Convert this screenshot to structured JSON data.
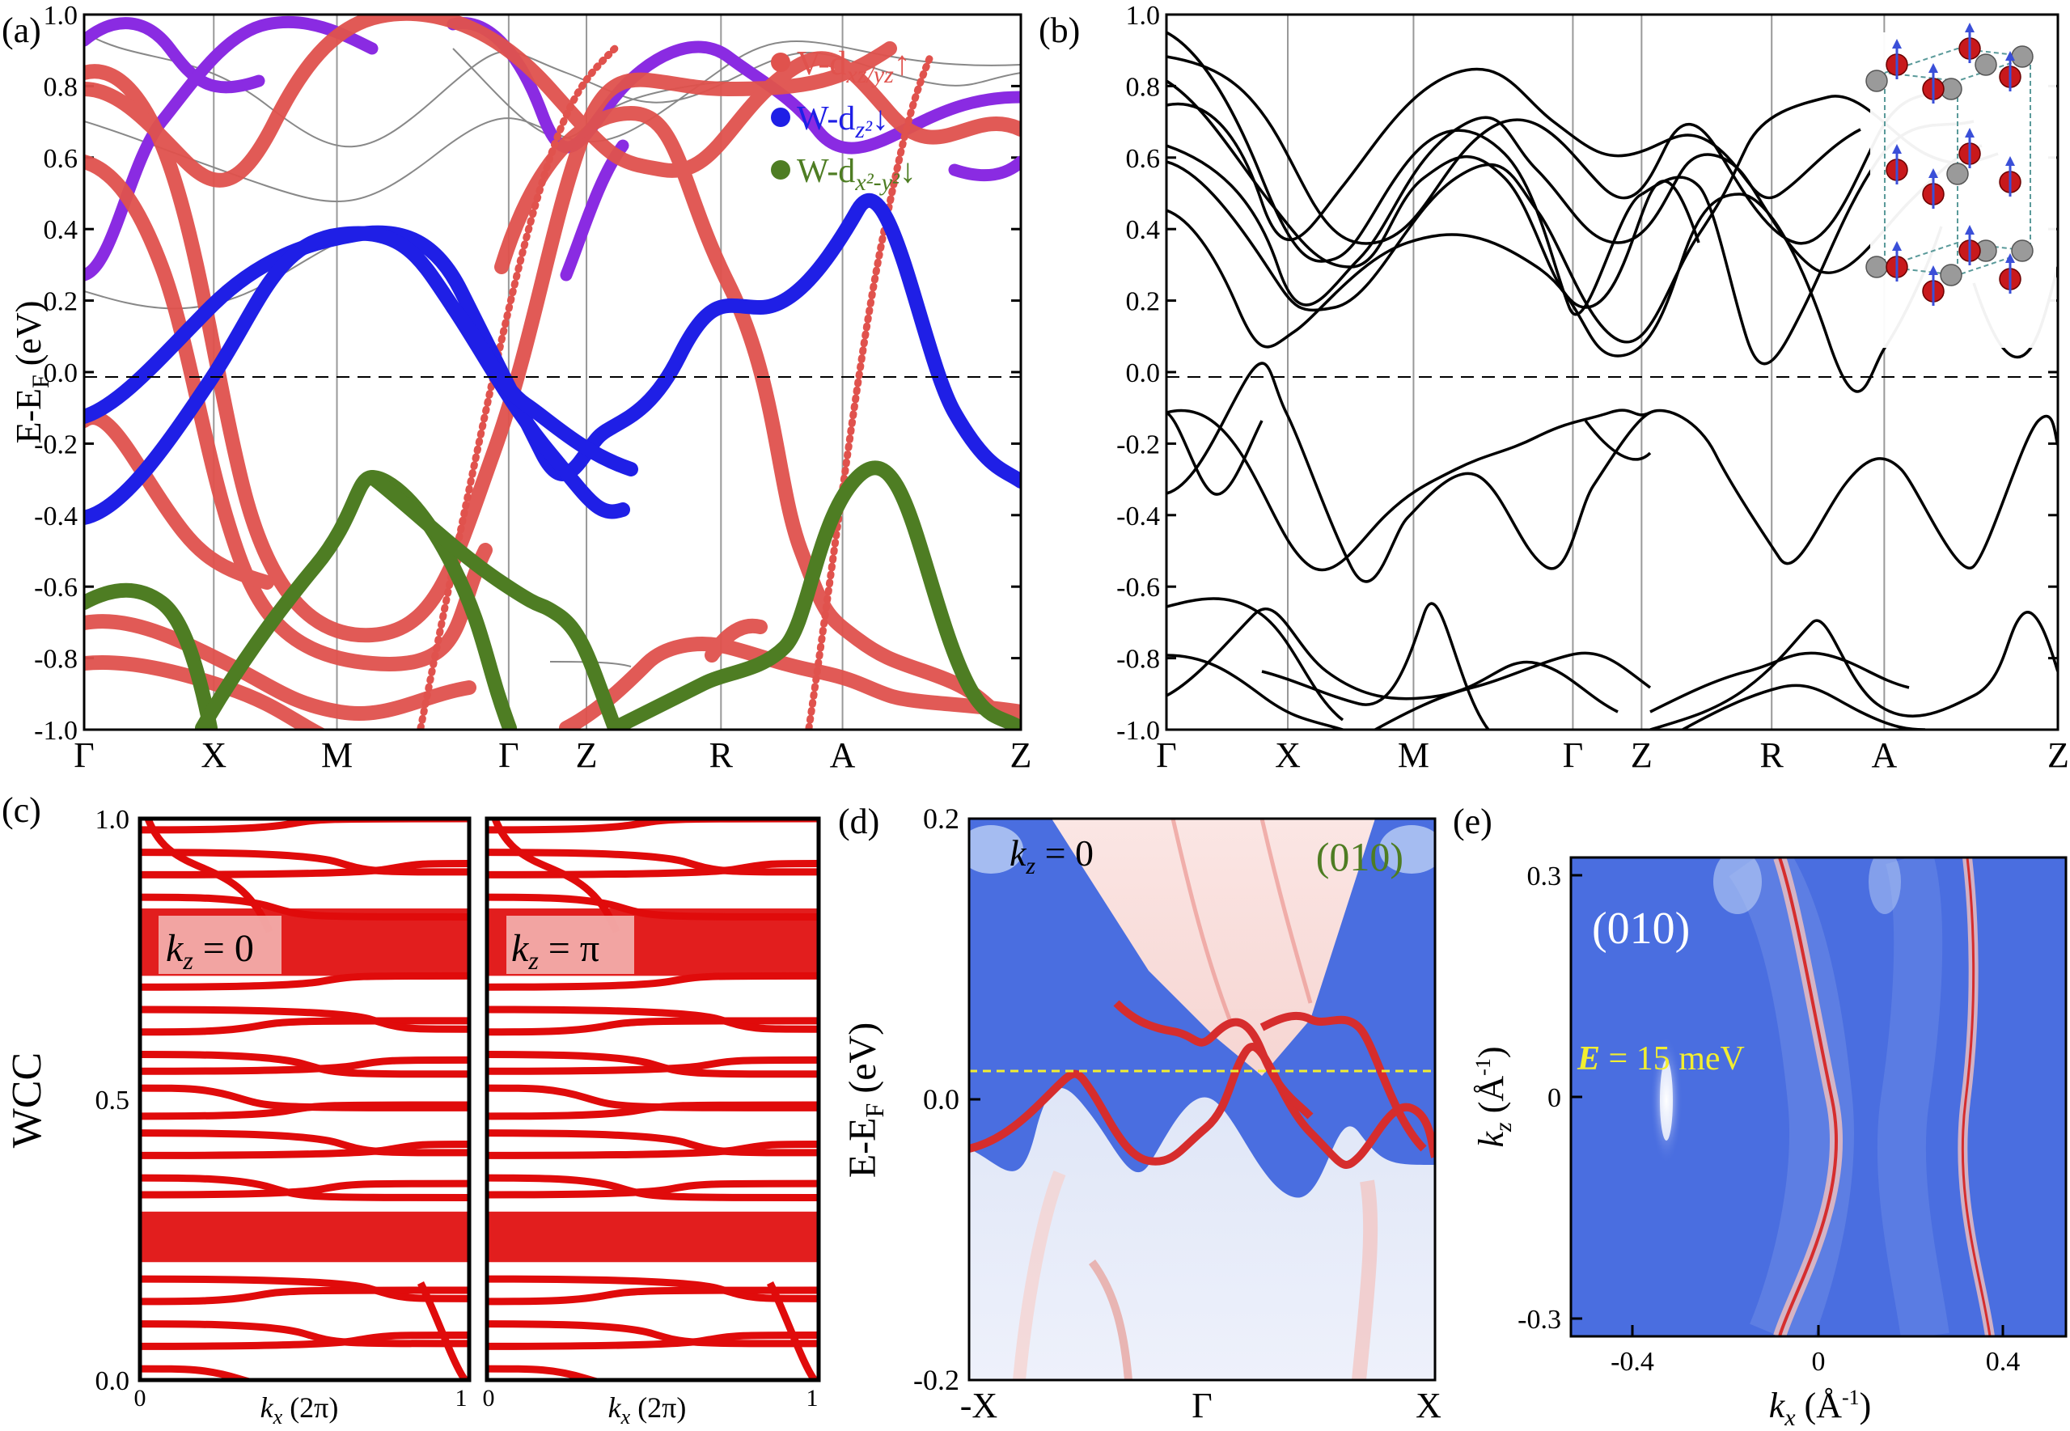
{
  "panels": {
    "a": {
      "label": "(a)",
      "ylabel": "E-E",
      "ylabel_sub": "F",
      "yunit": " (eV)",
      "yticks": [
        "-1.0",
        "-0.8",
        "-0.6",
        "-0.4",
        "-0.2",
        "0.0",
        "0.2",
        "0.4",
        "0.6",
        "0.8",
        "1.0"
      ],
      "kpath": [
        "Γ",
        "X",
        "M",
        "Γ",
        "Z",
        "R",
        "A",
        "Z"
      ],
      "legend": [
        {
          "text": "V-d",
          "sub": "xz/yz",
          "arrow": "↑",
          "color": "#e0524d"
        },
        {
          "text": "W-d",
          "sub": "z²",
          "arrow": "↓",
          "color": "#1f1fe6"
        },
        {
          "text": "W-d",
          "sub": "x²-y²",
          "arrow": "↓",
          "color": "#4e7d23"
        }
      ]
    },
    "b": {
      "label": "(b)",
      "yticks": [
        "-1.0",
        "-0.8",
        "-0.6",
        "-0.4",
        "-0.2",
        "0.0",
        "0.2",
        "0.4",
        "0.6",
        "0.8",
        "1.0"
      ],
      "kpath": [
        "Γ",
        "X",
        "M",
        "Γ",
        "Z",
        "R",
        "A",
        "Z"
      ]
    },
    "c": {
      "label": "(c)",
      "ylabel": "WCC",
      "yticks": [
        "0.0",
        "0.5",
        "1.0"
      ],
      "subplots": [
        {
          "tag": "k",
          "tag_sub": "z",
          "tag_val": " = 0",
          "xticks": [
            "0",
            "1"
          ],
          "xlabel": "k",
          "xlabel_sub": "x",
          "xunit": " (2π)"
        },
        {
          "tag": "k",
          "tag_sub": "z",
          "tag_val": " = π",
          "xticks": [
            "0",
            "1"
          ],
          "xlabel": "k",
          "xlabel_sub": "x",
          "xunit": " (2π)"
        }
      ]
    },
    "d": {
      "label": "(d)",
      "ylabel": "E-E",
      "ylabel_sub": "F",
      "yunit": " (eV)",
      "yticks": [
        "-0.2",
        "0.0",
        "0.2"
      ],
      "xticks": [
        "-X",
        "Γ",
        "X"
      ],
      "kz": "k",
      "kz_sub": "z",
      "kz_val": " = 0",
      "surface": "(010)"
    },
    "e": {
      "label": "(e)",
      "ylabel": "k",
      "ylabel_sub": "z",
      "yunit": " (Å",
      "yunit_sup": "-1",
      "yunit_end": ")",
      "xlabel": "k",
      "xlabel_sub": "x",
      "xunit": " (Å",
      "xunit_sup": "-1",
      "xunit_end": ")",
      "yticks": [
        "-0.3",
        "0",
        "0.3"
      ],
      "xticks": [
        "-0.4",
        "0",
        "0.4"
      ],
      "surface": "(010)",
      "energy": "E",
      "energy_val": " = 15 meV"
    }
  },
  "colors": {
    "v_dxz": "#e0524d",
    "w_dz2": "#1f1fe6",
    "w_dx2": "#4e7d23",
    "mix": "#8a2be2",
    "map_blue": "#4a6ee0",
    "map_red": "#d62d2d",
    "fermi_marker": "#f2ee30"
  }
}
